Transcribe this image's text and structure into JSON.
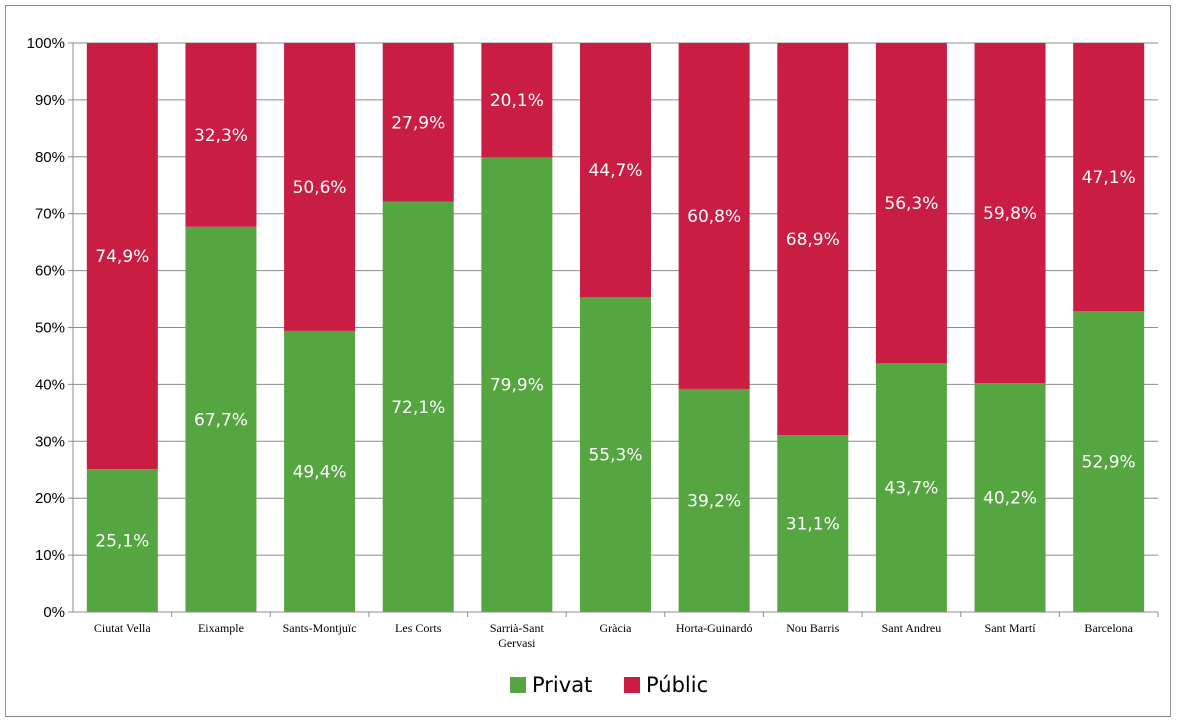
{
  "chart_data": {
    "type": "bar",
    "stacked": true,
    "percent_stacked": true,
    "categories": [
      "Ciutat Vella",
      "Eixample",
      "Sants-Montjuïc",
      "Les Corts",
      "Sarrià-Sant Gervasi",
      "Gràcia",
      "Horta-Guinardó",
      "Nou Barris",
      "Sant Andreu",
      "Sant Martí",
      "Barcelona"
    ],
    "category_lines": [
      [
        "Ciutat Vella"
      ],
      [
        "Eixample"
      ],
      [
        "Sants-Montjuïc"
      ],
      [
        "Les Corts"
      ],
      [
        "Sarrià-Sant",
        "Gervasi"
      ],
      [
        "Gràcia"
      ],
      [
        "Horta-Guinardó"
      ],
      [
        "Nou Barris"
      ],
      [
        "Sant Andreu"
      ],
      [
        "Sant Martí"
      ],
      [
        "Barcelona"
      ]
    ],
    "series": [
      {
        "name": "Privat",
        "color": "#55a640",
        "values": [
          25.1,
          67.7,
          49.4,
          72.1,
          79.9,
          55.3,
          39.2,
          31.1,
          43.7,
          40.2,
          52.9
        ],
        "labels": [
          "25,1%",
          "67,7%",
          "49,4%",
          "72,1%",
          "79,9%",
          "55,3%",
          "39,2%",
          "31,1%",
          "43,7%",
          "40,2%",
          "52,9%"
        ]
      },
      {
        "name": "Públic",
        "color": "#c91d44",
        "values": [
          74.9,
          32.3,
          50.6,
          27.9,
          20.1,
          44.7,
          60.8,
          68.9,
          56.3,
          59.8,
          47.1
        ],
        "labels": [
          "74,9%",
          "32,3%",
          "50,6%",
          "27,9%",
          "20,1%",
          "44,7%",
          "60,8%",
          "68,9%",
          "56,3%",
          "59,8%",
          "47,1%"
        ]
      }
    ],
    "ylim": [
      0,
      100
    ],
    "yticks": [
      "0%",
      "10%",
      "20%",
      "30%",
      "40%",
      "50%",
      "60%",
      "70%",
      "80%",
      "90%",
      "100%"
    ],
    "grid": true,
    "legend_position": "bottom"
  }
}
